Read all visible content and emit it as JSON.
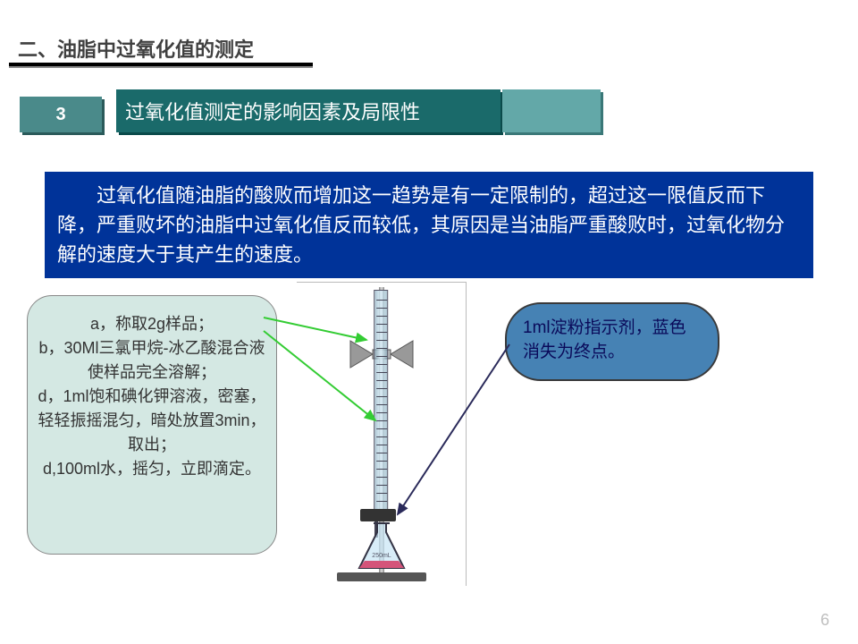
{
  "section_title": "二、油脂中过氧化值的测定",
  "badge_num": "3",
  "subtitle": "过氧化值测定的影响因素及局限性",
  "explanation": "过氧化值随油脂的酸败而增加这一趋势是有一定限制的，超过这一限值反而下降，严重败坏的油脂中过氧化值反而较低，其原因是当油脂严重酸败时，过氧化物分解的速度大于其产生的速度。",
  "left_steps": "a，称取2g样品；\nb，30Ml三氯甲烷-冰乙酸混合液使样品完全溶解；\nd，1ml饱和碘化钾溶液，密塞，轻轻振摇混匀，暗处放置3min，取出；\nd,100ml水，摇匀，立即滴定。",
  "right_note": "1ml淀粉指示剂，蓝色消失为终点。",
  "page_num": "6",
  "colors": {
    "badge_bg": "#4a8a8a",
    "subtitle_bg": "#1a6a6a",
    "decor_bg": "#63a8a8",
    "explain_bg": "#003399",
    "left_bubble_bg": "#d4e8e3",
    "right_bubble_bg": "#4682b4",
    "arrow_green": "#33cc33",
    "arrow_dark": "#2a2a5a"
  }
}
